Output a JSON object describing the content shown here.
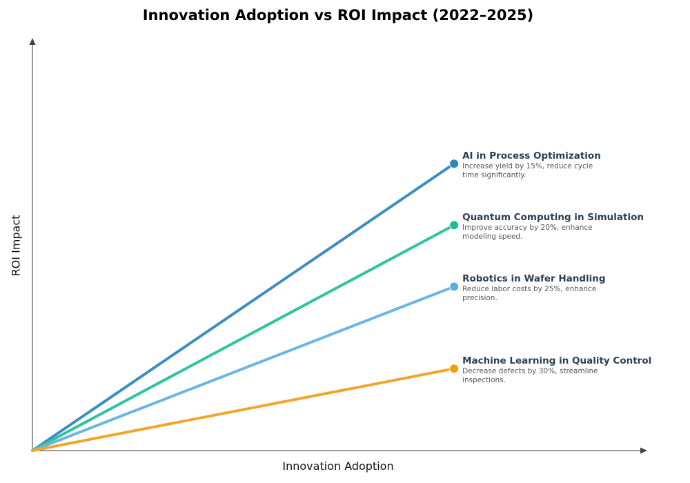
{
  "chart_data": {
    "type": "line",
    "title": "Innovation Adoption vs ROI Impact (2022–2025)",
    "xlabel": "Innovation Adoption",
    "ylabel": "ROI Impact",
    "xlim": [
      0,
      1
    ],
    "ylim": [
      0,
      1
    ],
    "grid": false,
    "series": [
      {
        "name": "AI in Process Optimization",
        "description": "Increase yield by 15%, reduce cycle time significantly.",
        "x": [
          0,
          0.7
        ],
        "y": [
          0,
          0.7
        ],
        "color": "#2e86c1",
        "line_color": "#3d8dc2"
      },
      {
        "name": "Quantum Computing in Simulation",
        "description": "Improve accuracy by 20%, enhance modeling speed.",
        "x": [
          0,
          0.7
        ],
        "y": [
          0,
          0.55
        ],
        "color": "#1abc9c",
        "line_color": "#2ec4a0"
      },
      {
        "name": "Robotics in Wafer Handling",
        "description": "Reduce labor costs by 25%, enhance precision.",
        "x": [
          0,
          0.7
        ],
        "y": [
          0,
          0.4
        ],
        "color": "#5dade2",
        "line_color": "#6ab5e4"
      },
      {
        "name": "Machine Learning in Quality Control",
        "description": "Decrease defects by 30%, streamline inspections.",
        "x": [
          0,
          0.7
        ],
        "y": [
          0,
          0.2
        ],
        "color": "#f39c12",
        "line_color": "#f3a52a"
      }
    ]
  }
}
